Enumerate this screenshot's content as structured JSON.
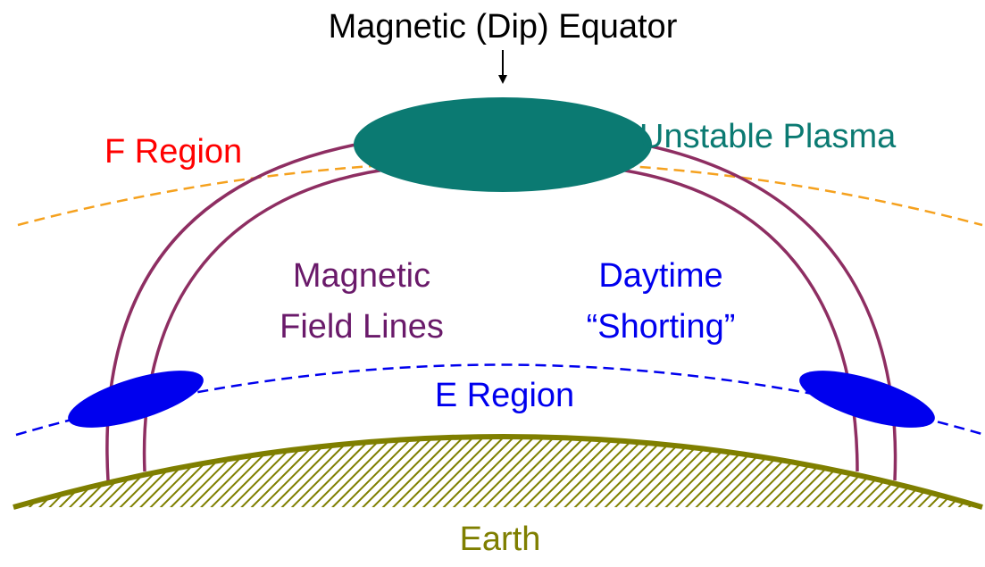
{
  "labels": {
    "equator": "Magnetic (Dip) Equator",
    "unstable_plasma": "Unstable Plasma",
    "f_region": "F Region",
    "field_lines_1": "Magnetic",
    "field_lines_2": "Field Lines",
    "daytime_1": "Daytime",
    "daytime_2": "“Shorting”",
    "e_region": "E Region",
    "earth": "Earth"
  },
  "colors": {
    "equator_label": "#000000",
    "plasma": "#0B7A72",
    "f_region": "#FF0000",
    "f_region_line": "#F5A11E",
    "field_lines": "#8E2E62",
    "field_lines_label": "#6A1A6A",
    "e_region": "#0000EE",
    "earth": "#7F7F00"
  }
}
